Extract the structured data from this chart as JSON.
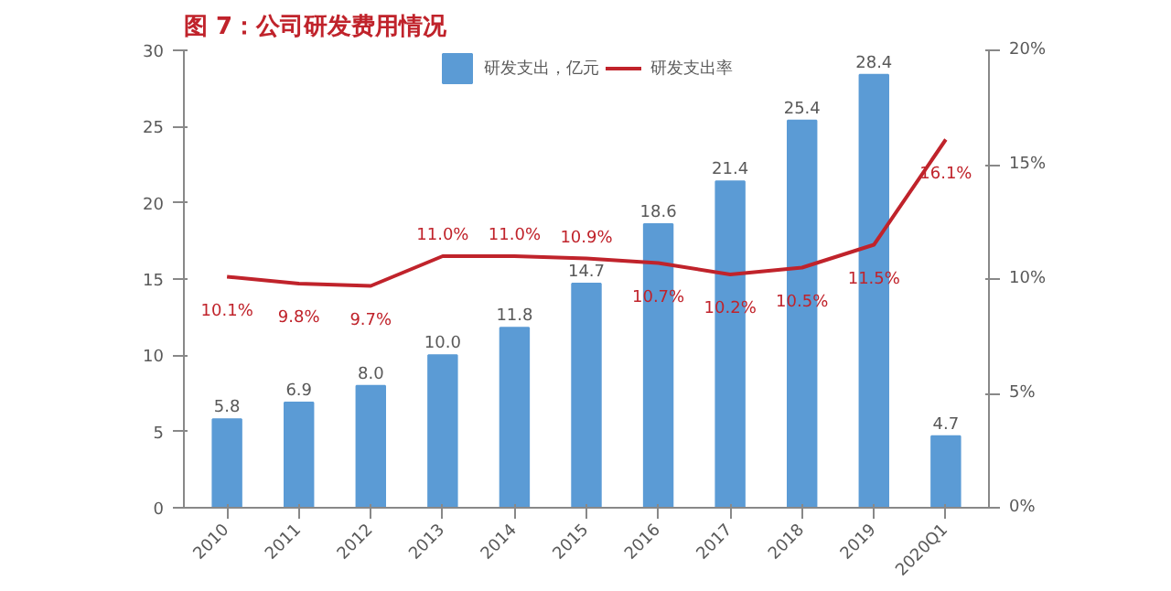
{
  "chart_data": {
    "type": "bar",
    "title": "图 7：公司研发费用情况",
    "categories": [
      "2010",
      "2011",
      "2012",
      "2013",
      "2014",
      "2015",
      "2016",
      "2017",
      "2018",
      "2019",
      "2020Q1"
    ],
    "series": [
      {
        "name": "研发支出，亿元",
        "color": "#5b9bd5",
        "values": [
          5.8,
          6.9,
          8.0,
          10.0,
          11.8,
          14.7,
          18.6,
          21.4,
          25.4,
          28.4,
          4.7
        ],
        "value_labels": [
          "5.8",
          "6.9",
          "8.0",
          "10.0",
          "11.8",
          "14.7",
          "18.6",
          "21.4",
          "25.4",
          "28.4",
          "4.7"
        ]
      },
      {
        "name": "研发支出率",
        "type": "line",
        "axis": "y2",
        "color": "#c0232b",
        "values": [
          10.1,
          9.8,
          9.7,
          11.0,
          11.0,
          10.9,
          10.7,
          10.2,
          10.5,
          11.5,
          16.1
        ],
        "value_labels": [
          "10.1%",
          "9.8%",
          "9.7%",
          "11.0%",
          "11.0%",
          "10.9%",
          "10.7%",
          "10.2%",
          "10.5%",
          "11.5%",
          "16.1%"
        ]
      }
    ],
    "ylim": [
      0,
      30
    ],
    "yticks": [
      0,
      5,
      10,
      15,
      20,
      25,
      30
    ],
    "y2lim": [
      0,
      20
    ],
    "y2ticks": [
      {
        "value": 0,
        "label": "0%"
      },
      {
        "value": 5,
        "label": "5%"
      },
      {
        "value": 10,
        "label": "10%"
      },
      {
        "value": 15,
        "label": "15%"
      },
      {
        "value": 20,
        "label": "20%"
      }
    ],
    "grid": false,
    "legend": "top"
  }
}
